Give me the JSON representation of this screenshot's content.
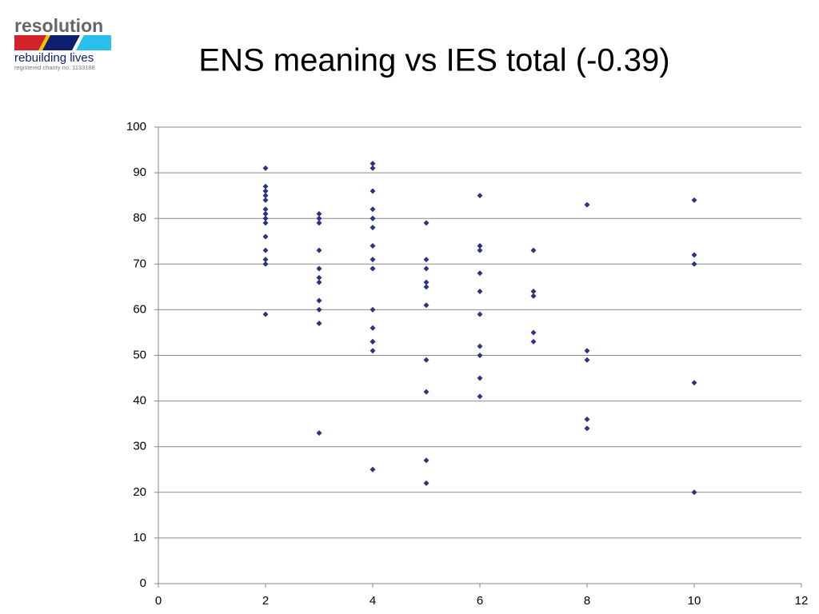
{
  "logo": {
    "name": "resolution",
    "tagline": "rebuilding lives",
    "charity": "registered charity no. 1133188"
  },
  "chart_data": {
    "type": "scatter",
    "title": "ENS meaning vs IES total (-0.39)",
    "x": [
      2,
      2,
      2,
      2,
      2,
      2,
      2,
      2,
      2,
      2,
      2,
      2,
      2,
      2,
      3,
      3,
      3,
      3,
      3,
      3,
      3,
      3,
      3,
      3,
      3,
      4,
      4,
      4,
      4,
      4,
      4,
      4,
      4,
      4,
      4,
      4,
      4,
      4,
      4,
      4,
      4,
      5,
      5,
      5,
      5,
      5,
      5,
      5,
      5,
      5,
      5,
      6,
      6,
      6,
      6,
      6,
      6,
      6,
      6,
      6,
      6,
      7,
      7,
      7,
      7,
      7,
      8,
      8,
      8,
      8,
      8,
      10,
      10,
      10,
      10,
      10
    ],
    "values": [
      91,
      87,
      86,
      85,
      84,
      82,
      81,
      80,
      79,
      76,
      73,
      71,
      70,
      59,
      81,
      80,
      79,
      73,
      69,
      67,
      66,
      62,
      60,
      57,
      33,
      92,
      91,
      86,
      82,
      80,
      80,
      78,
      74,
      71,
      69,
      60,
      56,
      53,
      53,
      51,
      25,
      79,
      71,
      69,
      66,
      65,
      61,
      49,
      42,
      27,
      22,
      85,
      74,
      73,
      68,
      64,
      59,
      52,
      50,
      45,
      41,
      73,
      64,
      63,
      55,
      53,
      83,
      51,
      49,
      36,
      34,
      84,
      72,
      70,
      44,
      20
    ],
    "color": "#2b3483",
    "xlim": [
      0,
      12
    ],
    "xticks": [
      0,
      2,
      4,
      6,
      8,
      10,
      12
    ],
    "ylim": [
      0,
      100
    ],
    "yticks": [
      0,
      10,
      20,
      30,
      40,
      50,
      60,
      70,
      80,
      90,
      100
    ],
    "grid": true
  }
}
